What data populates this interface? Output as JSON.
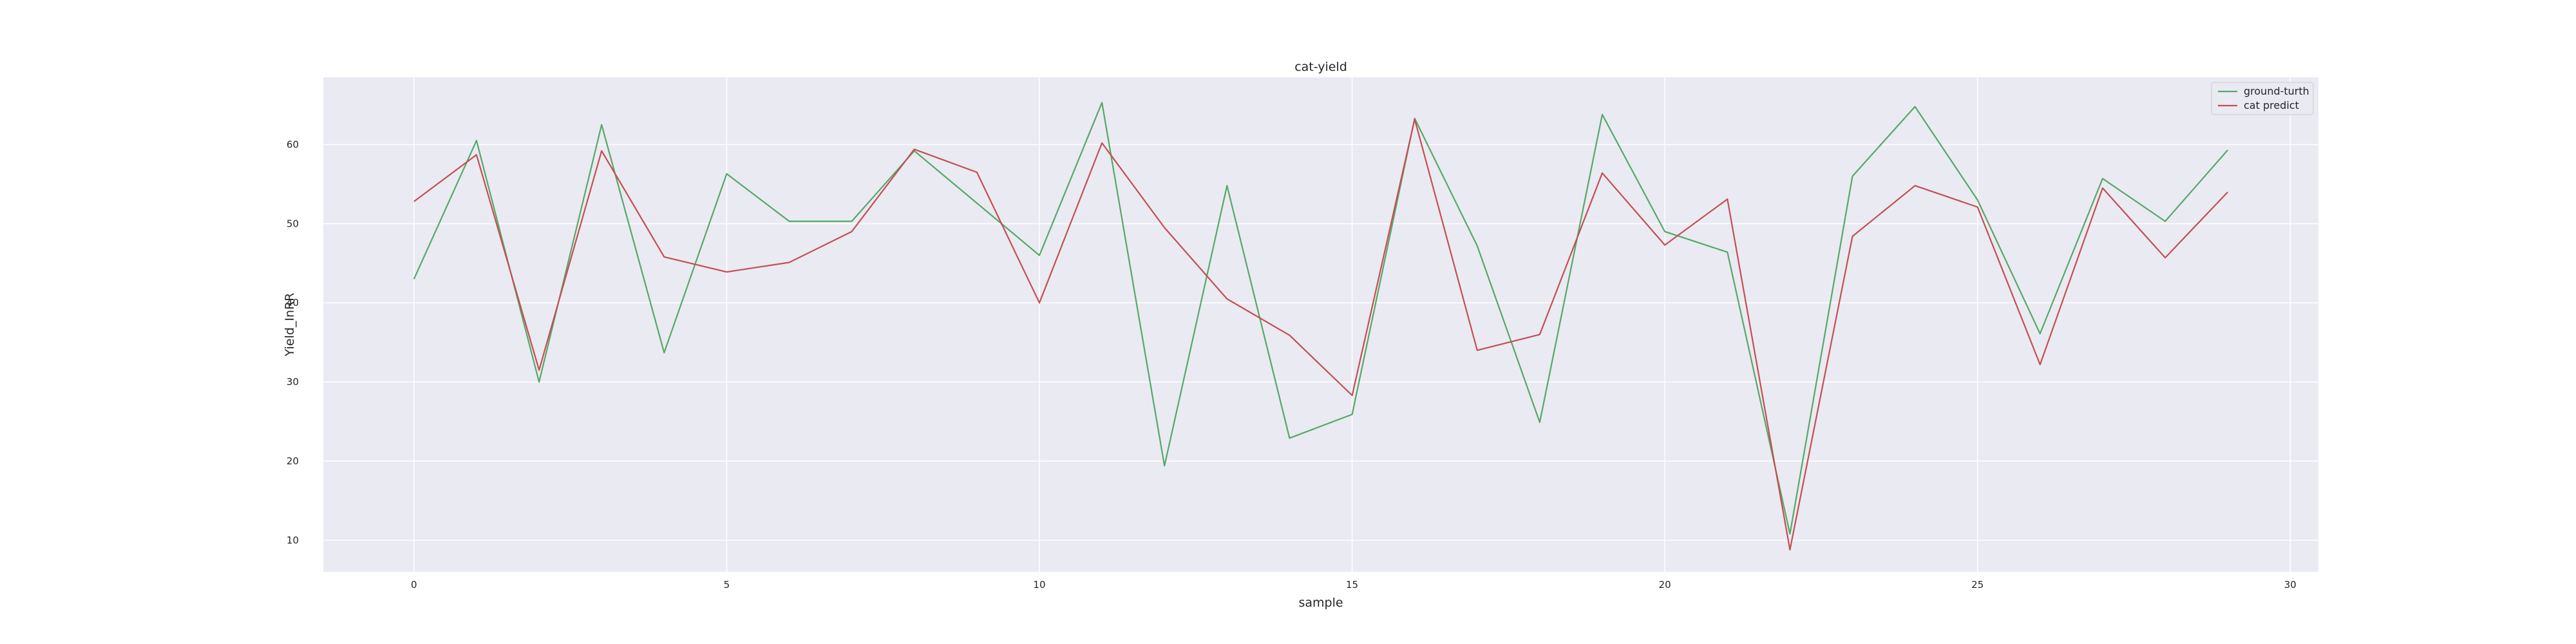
{
  "chart_data": {
    "type": "line",
    "title": "cat-yield",
    "xlabel": "sample",
    "ylabel": "Yield_InRR",
    "xlim": [
      -1.45,
      30.45
    ],
    "ylim": [
      6,
      68.5
    ],
    "xticks": [
      0,
      5,
      10,
      15,
      20,
      25,
      30
    ],
    "yticks": [
      10,
      20,
      30,
      40,
      50,
      60
    ],
    "grid": true,
    "legend_position": "top-right",
    "x": [
      0,
      1,
      2,
      3,
      4,
      5,
      6,
      7,
      8,
      9,
      10,
      11,
      12,
      13,
      14,
      15,
      16,
      17,
      18,
      19,
      20,
      21,
      22,
      23,
      24,
      25,
      26,
      27,
      28,
      29
    ],
    "series": [
      {
        "name": "ground-turth",
        "color": "#55a868",
        "values": [
          43,
          60.5,
          30,
          62.5,
          33.7,
          56.3,
          50.3,
          50.3,
          59.2,
          52.6,
          46,
          65.3,
          19.4,
          54.8,
          22.9,
          25.9,
          63.3,
          47.2,
          24.9,
          63.8,
          49,
          46.4,
          10.8,
          56,
          64.8,
          53,
          36.1,
          55.7,
          50.3,
          59.3
        ]
      },
      {
        "name": "cat predict",
        "color": "#c44e52",
        "values": [
          52.8,
          58.7,
          31.5,
          59.2,
          45.8,
          43.9,
          45.1,
          49,
          59.4,
          56.5,
          40,
          60.2,
          49.5,
          40.5,
          35.9,
          28.3,
          63.2,
          34,
          36,
          56.4,
          47.3,
          53.1,
          8.8,
          48.4,
          54.8,
          52.1,
          32.2,
          54.5,
          45.7,
          54
        ]
      }
    ]
  }
}
